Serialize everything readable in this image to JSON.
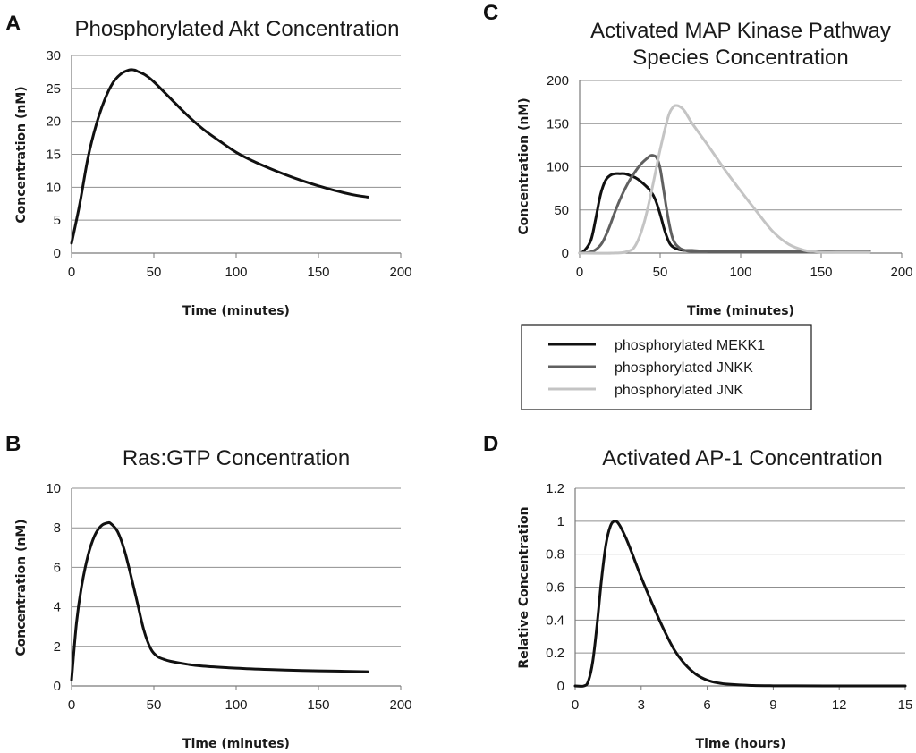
{
  "panels": [
    {
      "letter": "A",
      "title_lines": [
        "Phosphorylated Akt Concentration"
      ],
      "xlabel": "Time (minutes)",
      "ylabel": "Concentration (nM)"
    },
    {
      "letter": "C",
      "title_lines": [
        "Activated MAP Kinase Pathway",
        "Species Concentration"
      ],
      "xlabel": "Time (minutes)",
      "ylabel": "Concentration (nM)"
    },
    {
      "letter": "B",
      "title_lines": [
        "Ras:GTP Concentration"
      ],
      "xlabel": "Time (minutes)",
      "ylabel": "Concentration (nM)"
    },
    {
      "letter": "D",
      "title_lines": [
        "Activated AP-1 Concentration"
      ],
      "xlabel": "Time (hours)",
      "ylabel": "Relative Concentration"
    }
  ],
  "chart_data": [
    {
      "type": "line",
      "title": "Phosphorylated Akt Concentration",
      "xlabel": "Time (minutes)",
      "ylabel": "Concentration (nM)",
      "xlim": [
        0,
        200
      ],
      "ylim": [
        0,
        30
      ],
      "xticks": [
        "0",
        "50",
        "100",
        "150",
        "200"
      ],
      "yticks": [
        "0",
        "5",
        "10",
        "15",
        "20",
        "25",
        "30"
      ],
      "grid": "horizontal",
      "series": [
        {
          "color": "#111111",
          "x": [
            0,
            5,
            10,
            15,
            20,
            25,
            30,
            35,
            38,
            40,
            45,
            50,
            60,
            70,
            80,
            90,
            100,
            110,
            120,
            130,
            140,
            150,
            160,
            170,
            180
          ],
          "y": [
            1.5,
            7.5,
            14.5,
            19.5,
            23.2,
            25.8,
            27.2,
            27.8,
            27.8,
            27.6,
            27.0,
            26.0,
            23.5,
            21.0,
            18.8,
            17.0,
            15.3,
            14.0,
            12.9,
            11.9,
            11.0,
            10.2,
            9.5,
            8.9,
            8.5
          ]
        }
      ]
    },
    {
      "type": "line",
      "title": "Activated MAP Kinase Pathway Species Concentration",
      "xlabel": "Time (minutes)",
      "ylabel": "Concentration (nM)",
      "xlim": [
        0,
        200
      ],
      "ylim": [
        0,
        200
      ],
      "xticks": [
        "0",
        "50",
        "100",
        "150",
        "200"
      ],
      "yticks": [
        "0",
        "50",
        "100",
        "150",
        "200"
      ],
      "grid": "horizontal",
      "legend": "below",
      "series": [
        {
          "name": "phosphorylated MEKK1",
          "color": "#111111",
          "x": [
            0,
            3,
            7,
            10,
            13,
            16,
            19,
            22,
            25,
            28,
            31,
            35,
            38,
            41,
            44,
            47,
            50,
            53,
            56,
            59,
            62,
            66,
            70,
            80,
            100,
            120,
            140,
            160,
            180
          ],
          "y": [
            0,
            3,
            15,
            40,
            68,
            84,
            90,
            92,
            92,
            92,
            90,
            87,
            83,
            78,
            72,
            62,
            45,
            25,
            11,
            6,
            4,
            3,
            3,
            2,
            2,
            2,
            2,
            2,
            2
          ]
        },
        {
          "name": "phosphorylated JNKK",
          "color": "#606060",
          "x": [
            0,
            6,
            10,
            14,
            18,
            22,
            26,
            30,
            34,
            38,
            42,
            44,
            46,
            48,
            50,
            52,
            55,
            58,
            62,
            66,
            70,
            80,
            100,
            120,
            140,
            160,
            180
          ],
          "y": [
            0,
            1,
            4,
            12,
            28,
            48,
            66,
            81,
            93,
            103,
            110,
            113,
            113,
            110,
            98,
            75,
            40,
            16,
            6,
            3,
            2,
            2,
            2,
            2,
            2,
            2,
            2
          ]
        },
        {
          "name": "phosphorylated JNK",
          "color": "#c4c4c4",
          "x": [
            0,
            20,
            30,
            35,
            40,
            45,
            50,
            55,
            58,
            60,
            62,
            65,
            70,
            80,
            90,
            100,
            110,
            120,
            130,
            140,
            145,
            150,
            160,
            180
          ],
          "y": [
            0,
            0,
            2,
            10,
            35,
            75,
            120,
            158,
            169,
            171,
            170,
            165,
            150,
            124,
            97,
            72,
            48,
            25,
            10,
            3,
            2,
            1,
            1,
            1
          ]
        }
      ]
    },
    {
      "type": "line",
      "title": "Ras:GTP Concentration",
      "xlabel": "Time (minutes)",
      "ylabel": "Concentration (nM)",
      "xlim": [
        0,
        200
      ],
      "ylim": [
        0,
        10
      ],
      "xticks": [
        "0",
        "50",
        "100",
        "150",
        "200"
      ],
      "yticks": [
        "0",
        "2",
        "4",
        "6",
        "8",
        "10"
      ],
      "grid": "horizontal",
      "series": [
        {
          "color": "#111111",
          "x": [
            0,
            3,
            6,
            10,
            14,
            18,
            22,
            24,
            28,
            32,
            36,
            40,
            44,
            48,
            52,
            56,
            60,
            70,
            80,
            100,
            120,
            140,
            160,
            180
          ],
          "y": [
            0.3,
            3.2,
            5.0,
            6.6,
            7.6,
            8.1,
            8.25,
            8.2,
            7.8,
            6.9,
            5.6,
            4.2,
            2.8,
            1.9,
            1.5,
            1.35,
            1.25,
            1.1,
            1.0,
            0.9,
            0.83,
            0.78,
            0.75,
            0.72
          ]
        }
      ]
    },
    {
      "type": "line",
      "title": "Activated AP-1 Concentration",
      "xlabel": "Time (hours)",
      "ylabel": "Relative Concentration",
      "xlim": [
        0,
        15
      ],
      "ylim": [
        0,
        1.2
      ],
      "xticks": [
        "0",
        "3",
        "6",
        "9",
        "12",
        "15"
      ],
      "yticks": [
        "0",
        "0.2",
        "0.4",
        "0.6",
        "0.8",
        "1",
        "1.2"
      ],
      "grid": "horizontal",
      "series": [
        {
          "color": "#111111",
          "x": [
            0,
            0.4,
            0.6,
            0.8,
            1.0,
            1.2,
            1.4,
            1.6,
            1.8,
            2.0,
            2.3,
            2.6,
            3.0,
            3.5,
            4.0,
            4.5,
            5.0,
            5.5,
            6.0,
            6.5,
            7.0,
            8.0,
            9.0,
            12.0,
            15.0
          ],
          "y": [
            0,
            0,
            0.03,
            0.15,
            0.38,
            0.65,
            0.86,
            0.97,
            1.0,
            0.98,
            0.9,
            0.8,
            0.66,
            0.5,
            0.35,
            0.22,
            0.13,
            0.07,
            0.035,
            0.018,
            0.01,
            0.003,
            0.001,
            0,
            0
          ]
        }
      ]
    }
  ]
}
